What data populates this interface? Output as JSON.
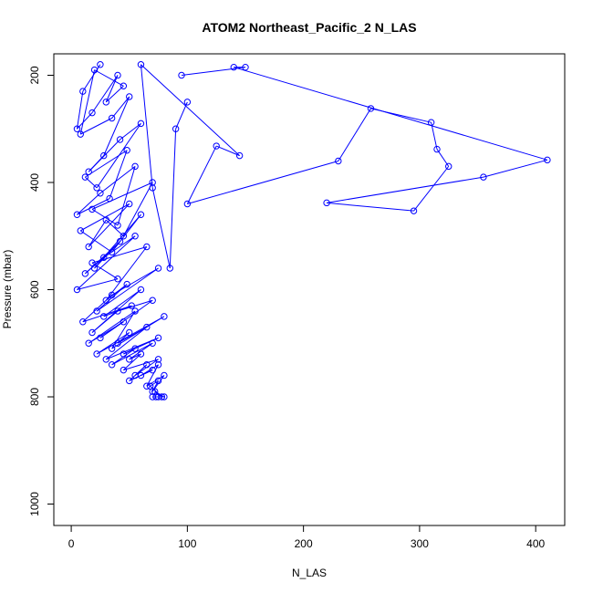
{
  "chart_data": {
    "type": "line",
    "title": "ATOM2 Northeast_Pacific_2 N_LAS",
    "xlabel": "N_LAS",
    "ylabel": "Pressure (mbar)",
    "xlim": [
      -15,
      425
    ],
    "ylim": [
      1040,
      160
    ],
    "y_reversed": true,
    "xticks": [
      0,
      100,
      200,
      300,
      400
    ],
    "yticks": [
      200,
      400,
      600,
      800,
      1000
    ],
    "grid": false,
    "legend": "none",
    "marker": "open-circle",
    "color": "#0000ff",
    "series": [
      {
        "x": [
          25,
          10,
          5,
          18,
          40,
          30,
          45,
          20,
          8,
          35,
          50,
          28,
          15,
          42,
          60,
          22,
          12,
          48,
          33,
          5,
          25,
          55,
          40,
          18,
          70,
          45,
          30,
          15,
          50,
          8,
          35,
          60,
          20,
          42,
          12,
          28,
          55,
          5,
          40,
          18,
          65,
          30,
          48,
          22,
          75,
          35,
          10,
          52,
          28,
          60,
          18,
          40,
          70,
          25,
          45,
          15,
          55,
          35,
          80,
          22,
          50,
          40,
          65,
          30,
          75,
          45,
          55,
          35,
          70,
          50,
          60,
          45,
          75,
          55,
          65,
          50,
          70,
          60,
          75,
          65,
          80,
          70,
          75,
          68,
          78,
          72,
          80,
          70,
          75,
          73
        ],
        "y": [
          180,
          230,
          300,
          270,
          200,
          250,
          220,
          190,
          310,
          280,
          240,
          350,
          380,
          320,
          290,
          410,
          390,
          340,
          430,
          460,
          420,
          370,
          480,
          450,
          400,
          500,
          470,
          520,
          440,
          490,
          530,
          460,
          560,
          510,
          570,
          540,
          500,
          600,
          580,
          550,
          520,
          620,
          590,
          640,
          560,
          610,
          660,
          630,
          650,
          600,
          680,
          640,
          620,
          690,
          660,
          700,
          640,
          710,
          650,
          720,
          680,
          700,
          670,
          730,
          690,
          720,
          710,
          740,
          700,
          730,
          720,
          750,
          730,
          760,
          740,
          770,
          750,
          760,
          740,
          780,
          760,
          790,
          770,
          780,
          800,
          790,
          800,
          800,
          800,
          800
        ]
      },
      {
        "x": [
          95,
          150,
          140,
          410,
          355,
          220,
          295,
          325,
          315,
          310,
          258,
          230,
          100,
          125,
          145,
          60,
          70,
          85,
          90,
          100
        ],
        "y": [
          200,
          185,
          185,
          358,
          390,
          438,
          453,
          370,
          338,
          288,
          262,
          360,
          440,
          332,
          350,
          180,
          410,
          560,
          300,
          250
        ]
      }
    ]
  }
}
